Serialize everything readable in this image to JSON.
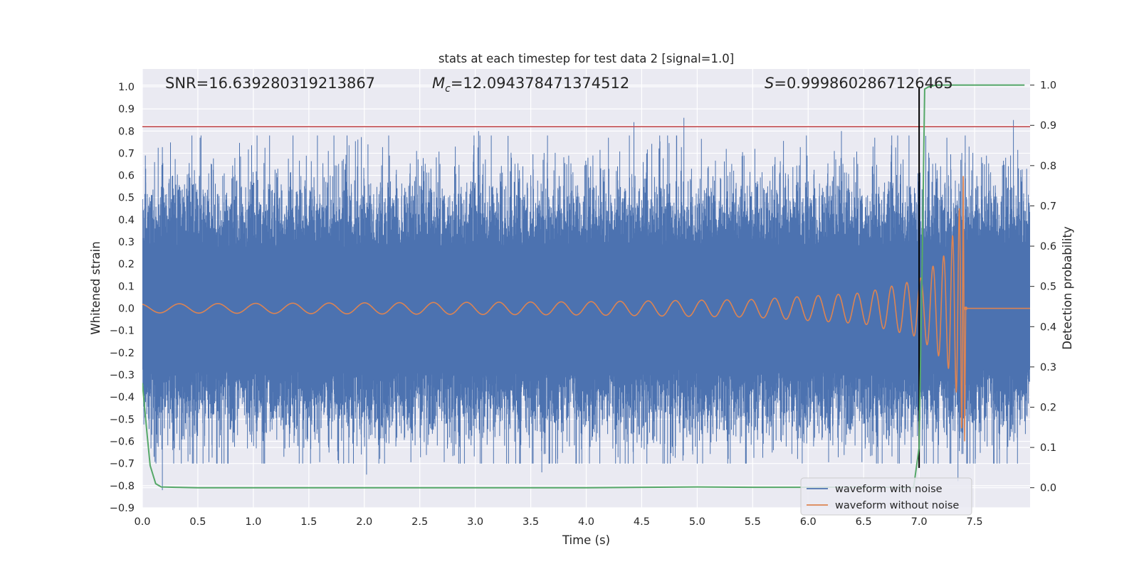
{
  "chart_data": {
    "type": "line",
    "title": "stats at each timestep for test data 2 [signal=1.0]",
    "xlabel": "Time (s)",
    "ylabel": "Whitened strain",
    "y2label": "Detection probability",
    "xlim": [
      0.0,
      8.0
    ],
    "ylim": [
      -0.9,
      1.08
    ],
    "y2lim": [
      -0.05,
      1.04
    ],
    "x_ticks": [
      0.0,
      0.5,
      1.0,
      1.5,
      2.0,
      2.5,
      3.0,
      3.5,
      4.0,
      4.5,
      5.0,
      5.5,
      6.0,
      6.5,
      7.0,
      7.5
    ],
    "x_tick_labels": [
      "0.0",
      "0.5",
      "1.0",
      "1.5",
      "2.0",
      "2.5",
      "3.0",
      "3.5",
      "4.0",
      "4.5",
      "5.0",
      "5.5",
      "6.0",
      "6.5",
      "7.0",
      "7.5"
    ],
    "y_ticks": [
      -0.9,
      -0.8,
      -0.7,
      -0.6,
      -0.5,
      -0.4,
      -0.3,
      -0.2,
      -0.1,
      0.0,
      0.1,
      0.2,
      0.3,
      0.4,
      0.5,
      0.6,
      0.7,
      0.8,
      0.9,
      1.0
    ],
    "y_tick_labels": [
      "−0.9",
      "−0.8",
      "−0.7",
      "−0.6",
      "−0.5",
      "−0.4",
      "−0.3",
      "−0.2",
      "−0.1",
      "0.0",
      "0.1",
      "0.2",
      "0.3",
      "0.4",
      "0.5",
      "0.6",
      "0.7",
      "0.8",
      "0.9",
      "1.0"
    ],
    "y2_ticks": [
      0.0,
      0.1,
      0.2,
      0.3,
      0.4,
      0.5,
      0.6,
      0.7,
      0.8,
      0.9,
      1.0
    ],
    "y2_tick_labels": [
      "0.0",
      "0.1",
      "0.2",
      "0.3",
      "0.4",
      "0.5",
      "0.6",
      "0.7",
      "0.8",
      "0.9",
      "1.0"
    ],
    "annotations": {
      "snr": "SNR=16.639280319213867",
      "mc_symbol": "M",
      "mc_subscript": "c",
      "mc_value": "=12.094378471374512",
      "s_symbol": "S",
      "s_value": "=0.9998602867126465"
    },
    "threshold_line": {
      "y": 0.82,
      "color": "#c44e52"
    },
    "merger_line": {
      "x": 7.0,
      "color": "#000000"
    },
    "series": [
      {
        "name": "waveform with noise",
        "color": "#4c72b0",
        "description_envelope": {
          "core_abs": 0.27,
          "typical_peak": 0.5,
          "max": 0.86,
          "min": -0.82
        },
        "spikes": [
          {
            "x": 0.03,
            "y": 0.63
          },
          {
            "x": 0.11,
            "y": 0.66
          },
          {
            "x": 0.18,
            "y": -0.82
          },
          {
            "x": 0.52,
            "y": 0.77
          },
          {
            "x": 1.22,
            "y": 0.63
          },
          {
            "x": 2.02,
            "y": -0.75
          },
          {
            "x": 2.6,
            "y": 0.63
          },
          {
            "x": 3.03,
            "y": 0.8
          },
          {
            "x": 3.4,
            "y": -0.7
          },
          {
            "x": 3.6,
            "y": -0.74
          },
          {
            "x": 4.2,
            "y": 0.77
          },
          {
            "x": 4.43,
            "y": 0.84
          },
          {
            "x": 4.88,
            "y": 0.86
          },
          {
            "x": 5.52,
            "y": 0.72
          },
          {
            "x": 5.9,
            "y": 0.57
          },
          {
            "x": 6.3,
            "y": 0.8
          },
          {
            "x": 6.6,
            "y": 0.77
          },
          {
            "x": 7.0,
            "y": -0.68
          },
          {
            "x": 7.25,
            "y": 0.77
          },
          {
            "x": 7.35,
            "y": -0.78
          },
          {
            "x": 7.45,
            "y": 0.73
          },
          {
            "x": 7.85,
            "y": 0.85
          }
        ]
      },
      {
        "name": "waveform without noise",
        "color": "#dd8452",
        "description": "chirp: amplitude ~0.02 at t=0 rising to ~0.6 at merger t=7.4, then ringdown to 0",
        "amplitude_points": [
          {
            "x": 0.0,
            "y": 0.02
          },
          {
            "x": 2.0,
            "y": 0.025
          },
          {
            "x": 4.0,
            "y": 0.03
          },
          {
            "x": 5.5,
            "y": 0.04
          },
          {
            "x": 6.5,
            "y": 0.07
          },
          {
            "x": 7.0,
            "y": 0.13
          },
          {
            "x": 7.25,
            "y": 0.25
          },
          {
            "x": 7.35,
            "y": 0.4
          },
          {
            "x": 7.4,
            "y": 0.61
          }
        ],
        "merger_time": 7.4,
        "end_time": 8.0
      },
      {
        "name": "detection probability",
        "color": "#55a868",
        "axis": "right",
        "x": [
          0.0,
          0.04,
          0.07,
          0.12,
          0.17,
          0.3,
          0.5,
          1.0,
          2.0,
          3.0,
          4.0,
          5.0,
          5.5,
          6.0,
          6.5,
          6.95,
          7.0,
          7.03,
          7.05,
          7.08,
          7.15,
          7.5,
          7.95
        ],
        "y": [
          0.26,
          0.14,
          0.055,
          0.01,
          0.002,
          0.001,
          0.0,
          0.0,
          0.0,
          0.0,
          0.0,
          0.002,
          0.001,
          0.001,
          0.002,
          0.0,
          0.1,
          0.6,
          0.99,
          0.995,
          1.0,
          1.0,
          1.0
        ]
      }
    ],
    "legend": {
      "position": "lower-right",
      "entries": [
        {
          "label": "waveform with noise",
          "color": "#4c72b0"
        },
        {
          "label": "waveform without noise",
          "color": "#dd8452"
        }
      ]
    }
  }
}
